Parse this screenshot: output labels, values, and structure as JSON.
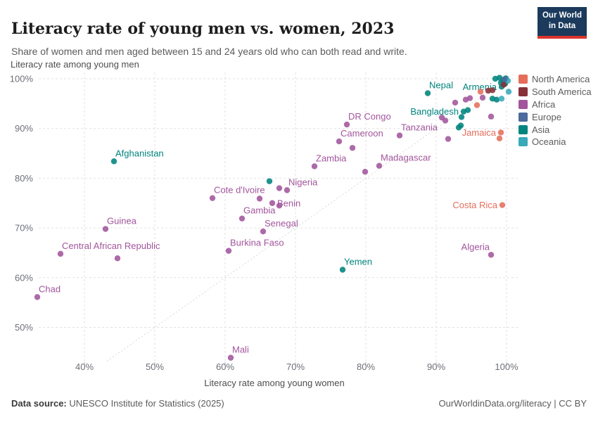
{
  "header": {
    "title": "Literacy rate of young men vs. women, 2023",
    "subtitle": "Share of women and men aged between 15 and 24 years old who can both read and write."
  },
  "logo": {
    "line1": "Our World",
    "line2": "in Data"
  },
  "footer": {
    "source_label": "Data source:",
    "source": "UNESCO Institute for Statistics (2025)",
    "credit": "OurWorldinData.org/literacy | CC BY"
  },
  "legend": {
    "position": "right",
    "items": [
      "North America",
      "South America",
      "Africa",
      "Europe",
      "Asia",
      "Oceania"
    ],
    "colors": {
      "North America": "#e56e5a",
      "South America": "#883039",
      "Africa": "#a2559c",
      "Europe": "#4c6a9c",
      "Asia": "#00847e",
      "Oceania": "#38aaba"
    }
  },
  "chart_data": {
    "type": "scatter",
    "title": "Literacy rate of young men vs. women, 2023",
    "axes": {
      "x": {
        "title": "Literacy rate among young women",
        "ticks": [
          40,
          50,
          60,
          70,
          80,
          90,
          100
        ],
        "range": [
          33,
          101
        ],
        "unit": "%"
      },
      "y": {
        "title": "Literacy rate among young men",
        "ticks": [
          50,
          60,
          70,
          80,
          90,
          100
        ],
        "range": [
          43,
          101
        ],
        "unit": "%"
      }
    },
    "diagonal_line": true,
    "points": [
      {
        "name": "Afghanistan",
        "continent": "Asia",
        "x": 44.2,
        "y": 83.4,
        "side": "ne"
      },
      {
        "name": "Guinea",
        "continent": "Africa",
        "x": 43.0,
        "y": 69.8,
        "side": "ne"
      },
      {
        "name": "Central African Republic",
        "continent": "Africa",
        "x": 36.6,
        "y": 64.8,
        "side": "ne"
      },
      {
        "name": "Chad",
        "continent": "Africa",
        "x": 33.3,
        "y": 56.1,
        "side": "ne"
      },
      {
        "name": "Cote d'Ivoire",
        "continent": "Africa",
        "x": 58.2,
        "y": 76.0,
        "side": "ne"
      },
      {
        "name": "Gambia",
        "continent": "Africa",
        "x": 62.4,
        "y": 71.9,
        "side": "ne"
      },
      {
        "name": "Senegal",
        "continent": "Africa",
        "x": 65.4,
        "y": 69.3,
        "side": "ne"
      },
      {
        "name": "Burkina Faso",
        "continent": "Africa",
        "x": 60.5,
        "y": 65.4,
        "side": "ne"
      },
      {
        "name": "Mali",
        "continent": "Africa",
        "x": 60.8,
        "y": 43.9,
        "side": "ne"
      },
      {
        "name": "Nigeria",
        "continent": "Africa",
        "x": 68.8,
        "y": 77.6,
        "side": "ne"
      },
      {
        "name": "Benin",
        "continent": "Africa",
        "x": 66.7,
        "y": 75.0,
        "side": "e"
      },
      {
        "name": "Zambia",
        "continent": "Africa",
        "x": 72.7,
        "y": 82.4,
        "side": "ne"
      },
      {
        "name": "Madagascar",
        "continent": "Africa",
        "x": 81.9,
        "y": 82.5,
        "side": "ne"
      },
      {
        "name": "Yemen",
        "continent": "Asia",
        "x": 76.7,
        "y": 61.6,
        "side": "ne"
      },
      {
        "name": "DR Congo",
        "continent": "Africa",
        "x": 77.3,
        "y": 90.8,
        "side": "ne"
      },
      {
        "name": "Cameroon",
        "continent": "Africa",
        "x": 76.2,
        "y": 87.4,
        "side": "ne"
      },
      {
        "name": "Tanzania",
        "continent": "Africa",
        "x": 84.8,
        "y": 88.6,
        "side": "ne"
      },
      {
        "name": "Nepal",
        "continent": "Asia",
        "x": 88.8,
        "y": 97.1,
        "side": "ne"
      },
      {
        "name": "Bangladesh",
        "continent": "Asia",
        "x": 93.9,
        "y": 93.4,
        "side": "w"
      },
      {
        "name": "Armenia",
        "continent": "Asia",
        "x": 99.3,
        "y": 98.4,
        "side": "w"
      },
      {
        "name": "Jamaica",
        "continent": "North America",
        "x": 99.2,
        "y": 89.2,
        "side": "w"
      },
      {
        "name": "Costa Rica",
        "continent": "North America",
        "x": 99.4,
        "y": 74.6,
        "side": "w"
      },
      {
        "name": "Algeria",
        "continent": "Africa",
        "x": 97.8,
        "y": 64.6,
        "side": "nw"
      },
      {
        "name": "",
        "continent": "Africa",
        "x": 44.7,
        "y": 63.9
      },
      {
        "name": "",
        "continent": "Africa",
        "x": 64.9,
        "y": 75.9
      },
      {
        "name": "",
        "continent": "Asia",
        "x": 66.3,
        "y": 79.4
      },
      {
        "name": "",
        "continent": "Africa",
        "x": 67.7,
        "y": 78.0
      },
      {
        "name": "",
        "continent": "Africa",
        "x": 67.7,
        "y": 74.5
      },
      {
        "name": "",
        "continent": "Africa",
        "x": 78.1,
        "y": 86.1
      },
      {
        "name": "",
        "continent": "Africa",
        "x": 79.9,
        "y": 81.3
      },
      {
        "name": "",
        "continent": "Africa",
        "x": 91.7,
        "y": 87.9
      },
      {
        "name": "",
        "continent": "Africa",
        "x": 90.8,
        "y": 92.2
      },
      {
        "name": "",
        "continent": "Africa",
        "x": 91.3,
        "y": 91.6
      },
      {
        "name": "",
        "continent": "Asia",
        "x": 93.2,
        "y": 90.2
      },
      {
        "name": "",
        "continent": "Asia",
        "x": 93.5,
        "y": 90.6
      },
      {
        "name": "",
        "continent": "Asia",
        "x": 94.5,
        "y": 93.7
      },
      {
        "name": "",
        "continent": "Asia",
        "x": 93.6,
        "y": 92.3
      },
      {
        "name": "",
        "continent": "Africa",
        "x": 92.7,
        "y": 95.2
      },
      {
        "name": "",
        "continent": "Africa",
        "x": 94.2,
        "y": 95.8
      },
      {
        "name": "",
        "continent": "Africa",
        "x": 94.8,
        "y": 96.1
      },
      {
        "name": "",
        "continent": "Africa",
        "x": 96.6,
        "y": 96.2
      },
      {
        "name": "",
        "continent": "North America",
        "x": 96.3,
        "y": 97.4
      },
      {
        "name": "",
        "continent": "South America",
        "x": 97.4,
        "y": 97.6
      },
      {
        "name": "",
        "continent": "South America",
        "x": 98.0,
        "y": 97.7
      },
      {
        "name": "",
        "continent": "North America",
        "x": 95.8,
        "y": 94.7
      },
      {
        "name": "",
        "continent": "Asia",
        "x": 98.0,
        "y": 96.0
      },
      {
        "name": "",
        "continent": "Asia",
        "x": 98.6,
        "y": 95.8
      },
      {
        "name": "",
        "continent": "Oceania",
        "x": 99.3,
        "y": 96.0
      },
      {
        "name": "",
        "continent": "Africa",
        "x": 97.8,
        "y": 92.4
      },
      {
        "name": "",
        "continent": "North America",
        "x": 99.0,
        "y": 88.0
      },
      {
        "name": "",
        "continent": "Asia",
        "x": 98.4,
        "y": 100.0
      },
      {
        "name": "",
        "continent": "Asia",
        "x": 99.0,
        "y": 100.2
      },
      {
        "name": "",
        "continent": "Asia",
        "x": 99.5,
        "y": 99.7
      },
      {
        "name": "",
        "continent": "Asia",
        "x": 99.9,
        "y": 100.1
      },
      {
        "name": "",
        "continent": "Asia",
        "x": 99.2,
        "y": 99.2
      },
      {
        "name": "",
        "continent": "Asia",
        "x": 99.8,
        "y": 99.0
      },
      {
        "name": "",
        "continent": "Oceania",
        "x": 100.2,
        "y": 99.6
      },
      {
        "name": "",
        "continent": "South America",
        "x": 99.6,
        "y": 98.8
      },
      {
        "name": "",
        "continent": "Europe",
        "x": 99.7,
        "y": 99.9
      },
      {
        "name": "",
        "continent": "Oceania",
        "x": 100.3,
        "y": 97.4
      }
    ]
  }
}
